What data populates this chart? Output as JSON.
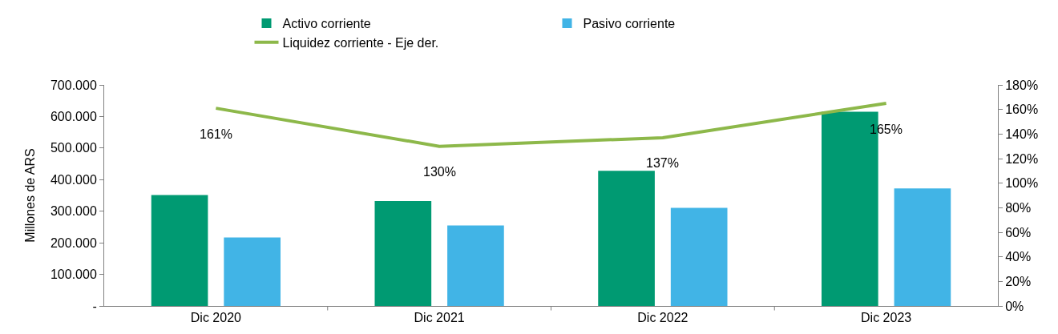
{
  "chart_data": {
    "type": "bar",
    "categories": [
      "Dic 2020",
      "Dic 2021",
      "Dic 2022",
      "Dic 2023"
    ],
    "ylabel": "Millones de ARS",
    "series": [
      {
        "name": "Activo corriente",
        "color": "#009a72",
        "values": [
          351000,
          332000,
          428000,
          615000
        ]
      },
      {
        "name": "Pasivo corriente",
        "color": "#41b4e6",
        "values": [
          217000,
          255000,
          311000,
          372000
        ]
      },
      {
        "name": "Liquidez corriente - Eje der.",
        "type": "line",
        "axis": "y2",
        "color": "#8db84a",
        "values": [
          161,
          130,
          137,
          165
        ],
        "value_labels": [
          "161%",
          "130%",
          "137%",
          "165%"
        ]
      }
    ],
    "ylim": [
      0,
      700000
    ],
    "yticks": [
      {
        "value": 0,
        "label": "-"
      },
      {
        "value": 100000,
        "label": "100.000"
      },
      {
        "value": 200000,
        "label": "200.000"
      },
      {
        "value": 300000,
        "label": "300.000"
      },
      {
        "value": 400000,
        "label": "400.000"
      },
      {
        "value": 500000,
        "label": "500.000"
      },
      {
        "value": 600000,
        "label": "600.000"
      },
      {
        "value": 700000,
        "label": "700.000"
      }
    ],
    "y2lim": [
      0,
      180
    ],
    "y2ticks": [
      {
        "value": 0,
        "label": "0%"
      },
      {
        "value": 20,
        "label": "20%"
      },
      {
        "value": 40,
        "label": "40%"
      },
      {
        "value": 60,
        "label": "60%"
      },
      {
        "value": 80,
        "label": "80%"
      },
      {
        "value": 100,
        "label": "100%"
      },
      {
        "value": 120,
        "label": "120%"
      },
      {
        "value": 140,
        "label": "140%"
      },
      {
        "value": 160,
        "label": "160%"
      },
      {
        "value": 180,
        "label": "180%"
      }
    ],
    "grid": false,
    "legend": "top"
  }
}
